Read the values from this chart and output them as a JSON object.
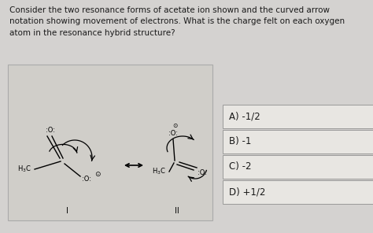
{
  "question_text": "Consider the two resonance forms of acetate ion shown and the curved arrow\nnotation showing movement of electrons. What is the charge felt on each oxygen\natom in the resonance hybrid structure?",
  "choices": [
    "A) -1/2",
    "B) -1",
    "C) -2",
    "D) +1/2"
  ],
  "bg_color": "#d4d2d0",
  "mol_box_bg": "#d0cec9",
  "text_color": "#1a1a1a",
  "choice_box_color": "#e8e6e2",
  "choice_border_color": "#999999",
  "question_fontsize": 7.5,
  "choice_fontsize": 8.5,
  "mol_fontsize": 6.0
}
